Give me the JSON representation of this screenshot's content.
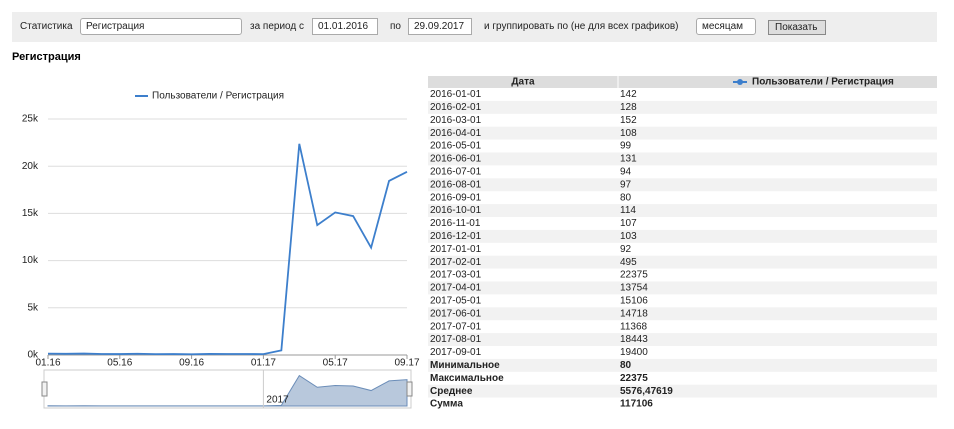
{
  "toolbar": {
    "label": "Статистика",
    "stat": "Регистрация",
    "from_label": "за период с",
    "from": "01.01.2016",
    "to_label": "по",
    "to": "29.09.2017",
    "group_label": "и группировать по (не для всех графиков)",
    "group": "месяцам",
    "button": "Показать"
  },
  "heading": "Регистрация",
  "chart_data": {
    "type": "line",
    "x": [
      "2016-01-01",
      "2016-02-01",
      "2016-03-01",
      "2016-04-01",
      "2016-05-01",
      "2016-06-01",
      "2016-07-01",
      "2016-08-01",
      "2016-09-01",
      "2016-10-01",
      "2016-11-01",
      "2016-12-01",
      "2017-01-01",
      "2017-02-01",
      "2017-03-01",
      "2017-04-01",
      "2017-05-01",
      "2017-06-01",
      "2017-07-01",
      "2017-08-01",
      "2017-09-01"
    ],
    "series": [
      {
        "name": "Пользователи / Регистрация",
        "color": "#3d7fcc",
        "values": [
          142,
          128,
          152,
          108,
          99,
          131,
          94,
          97,
          80,
          114,
          107,
          103,
          92,
          495,
          22375,
          13754,
          15106,
          14718,
          11368,
          18443,
          19400
        ]
      }
    ],
    "ylim": [
      0,
      25000
    ],
    "yticks": [
      {
        "value": 0,
        "label": "0k"
      },
      {
        "value": 5000,
        "label": "5k"
      },
      {
        "value": 10000,
        "label": "10k"
      },
      {
        "value": 15000,
        "label": "15k"
      },
      {
        "value": 20000,
        "label": "20k"
      },
      {
        "value": 25000,
        "label": "25k"
      }
    ],
    "xticks": [
      {
        "value": "2016-01-01",
        "label": "01.16"
      },
      {
        "value": "2016-05-01",
        "label": "05.16"
      },
      {
        "value": "2016-09-01",
        "label": "09.16"
      },
      {
        "value": "2017-01-01",
        "label": "01.17"
      },
      {
        "value": "2017-05-01",
        "label": "05.17"
      },
      {
        "value": "2017-09-01",
        "label": "09.17"
      }
    ],
    "grid": true,
    "navigator": {
      "label": "2017",
      "at": "2017-01-01"
    }
  },
  "table": {
    "headers": [
      "Дата"
    ],
    "summary": [
      {
        "label": "Минимальное",
        "value": "80"
      },
      {
        "label": "Максимальное",
        "value": "22375"
      },
      {
        "label": "Среднее",
        "value": "5576,47619"
      },
      {
        "label": "Сумма",
        "value": "117106"
      }
    ]
  }
}
